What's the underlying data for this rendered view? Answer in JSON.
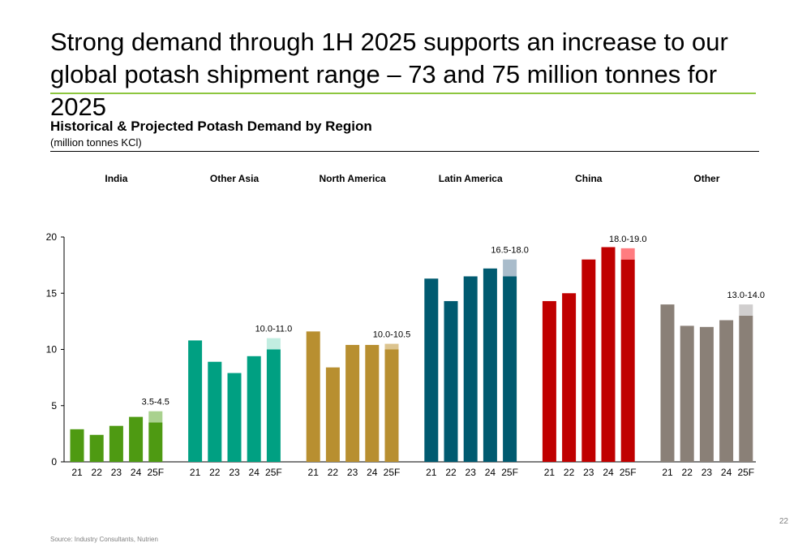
{
  "slide": {
    "title": "Strong demand through 1H 2025 supports an increase to our global potash shipment range – 73 and 75 million tonnes for 2025",
    "page_number": "22",
    "source": "Source: Industry Consultants, Nutrien",
    "accent_color": "#8dc63f"
  },
  "chart_data": {
    "type": "bar",
    "title": "Historical & Projected Potash Demand by Region",
    "subtitle": "(million tonnes KCl)",
    "ylim": [
      0,
      20
    ],
    "yticks": [
      0,
      5,
      10,
      15,
      20
    ],
    "categories": [
      "21",
      "22",
      "23",
      "24",
      "25F"
    ],
    "grid": false,
    "groups": [
      {
        "name": "India",
        "color": "#4e9a12",
        "range_color": "#a9d18e",
        "values": [
          2.9,
          2.4,
          3.2,
          4.0,
          3.5
        ],
        "range": [
          3.5,
          4.5
        ],
        "range_label": "3.5-4.5"
      },
      {
        "name": "Other Asia",
        "color": "#00a082",
        "range_color": "#c2ede1",
        "values": [
          10.8,
          8.9,
          7.9,
          9.4,
          10.0
        ],
        "range": [
          10.0,
          11.0
        ],
        "range_label": "10.0-11.0"
      },
      {
        "name": "North America",
        "color": "#b88f30",
        "range_color": "#dcc48f",
        "values": [
          11.6,
          8.4,
          10.4,
          10.4,
          10.0
        ],
        "range": [
          10.0,
          10.5
        ],
        "range_label": "10.0-10.5"
      },
      {
        "name": "Latin America",
        "color": "#005a70",
        "range_color": "#a9bccb",
        "values": [
          16.3,
          14.3,
          16.5,
          17.2,
          16.5
        ],
        "range": [
          16.5,
          18.0
        ],
        "range_label": "16.5-18.0"
      },
      {
        "name": "China",
        "color": "#c00000",
        "range_color": "#ff7c80",
        "values": [
          14.3,
          15.0,
          18.0,
          19.1,
          18.0
        ],
        "range": [
          18.0,
          19.0
        ],
        "range_label": "18.0-19.0"
      },
      {
        "name": "Other",
        "color": "#8a8077",
        "range_color": "#d0cece",
        "values": [
          14.0,
          12.1,
          12.0,
          12.6,
          13.0
        ],
        "range": [
          13.0,
          14.0
        ],
        "range_label": "13.0-14.0"
      }
    ]
  }
}
